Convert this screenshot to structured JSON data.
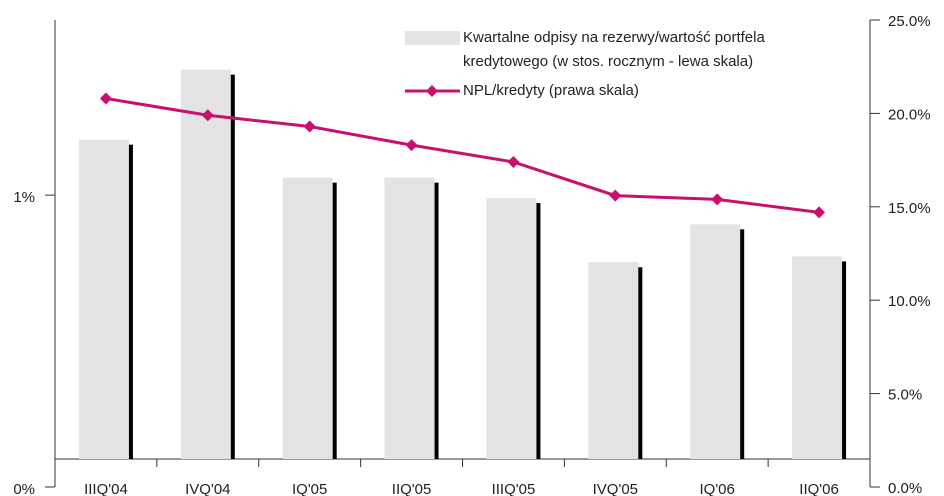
{
  "chart_data": {
    "type": "bar",
    "categories": [
      "IIIQ'04",
      "IVQ'04",
      "IQ'05",
      "IIQ'05",
      "IIIQ'05",
      "IVQ'05",
      "IQ'06",
      "IIQ'06"
    ],
    "series": [
      {
        "name": "Kwartalne odpisy na rezerwy/wartość portfela kredytowego (w stos. rocznym - lewa skala)",
        "type": "bar",
        "color": "#e3e3e3",
        "shadow_color": "#000000",
        "values": [
          1.19,
          1.43,
          1.06,
          1.06,
          0.99,
          0.77,
          0.9,
          0.79
        ]
      },
      {
        "name": "NPL/kredyty (prawa skala)",
        "type": "line",
        "axis": "y2",
        "color": "#c8106e",
        "values": [
          20.8,
          19.9,
          19.3,
          18.3,
          17.4,
          15.6,
          15.4,
          14.7
        ]
      }
    ],
    "ylim": [
      0,
      1.6
    ],
    "yticks": [
      {
        "value": 0,
        "label": "0%"
      },
      {
        "value": 1,
        "label": "1%"
      }
    ],
    "y2lim": [
      0,
      25
    ],
    "y2ticks": [
      {
        "value": 0,
        "label": "0.0%"
      },
      {
        "value": 5,
        "label": "5.0%"
      },
      {
        "value": 10,
        "label": "10.0%"
      },
      {
        "value": 15,
        "label": "15.0%"
      },
      {
        "value": 20,
        "label": "20.0%"
      },
      {
        "value": 25,
        "label": "25.0%"
      }
    ]
  }
}
